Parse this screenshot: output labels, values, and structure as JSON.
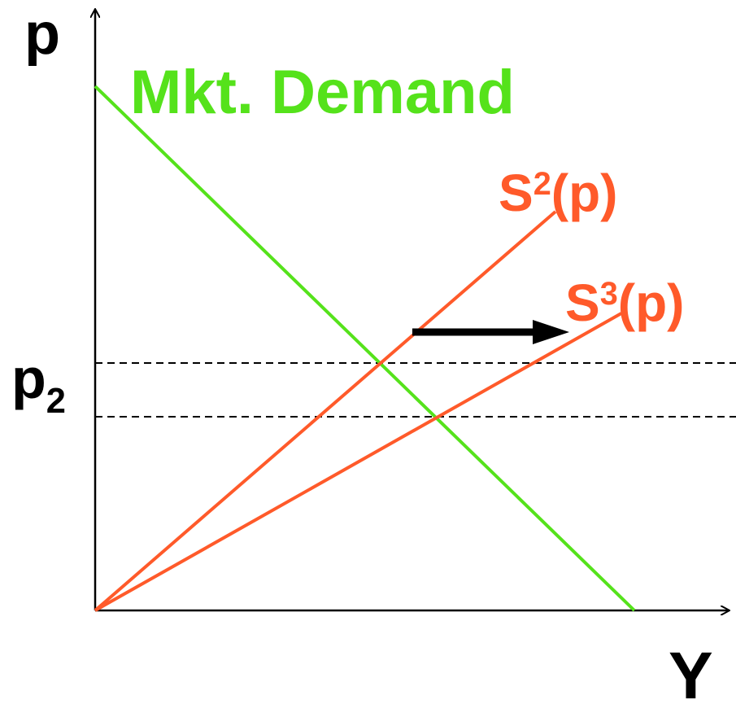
{
  "axes": {
    "y_label": "p",
    "x_label": "Y",
    "price_label_main": "p",
    "price_label_sub": "2"
  },
  "curves": {
    "demand": {
      "label": "Mkt. Demand",
      "color": "#55e21b"
    },
    "supply2": {
      "label_base": "S",
      "label_sup": "2",
      "label_tail": "(p)",
      "color": "#ff5a2a"
    },
    "supply3": {
      "label_base": "S",
      "label_sup": "3",
      "label_tail": "(p)",
      "color": "#ff5a2a"
    }
  },
  "colors": {
    "axis": "#000000",
    "arrow": "#000000",
    "guide": "#000000"
  }
}
